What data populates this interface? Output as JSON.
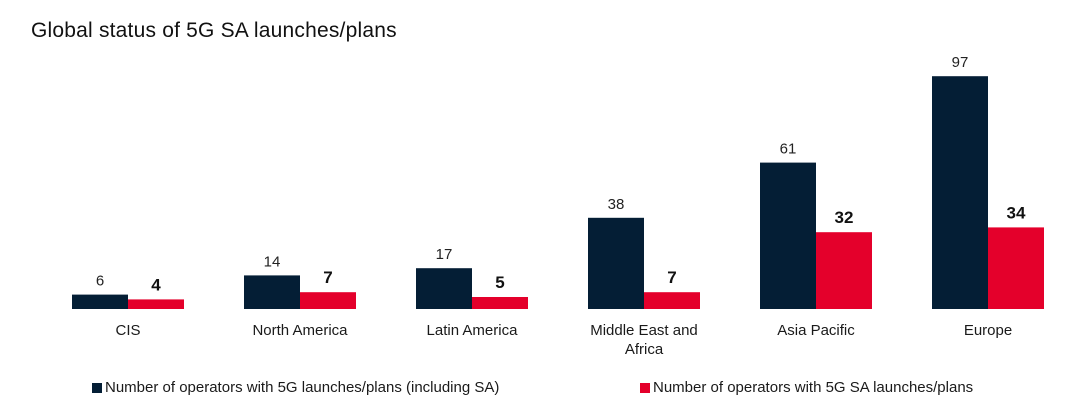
{
  "chart_data": {
    "type": "bar",
    "title": "Global status of 5G SA launches/plans",
    "xlabel": "",
    "ylabel": "",
    "ylim": [
      0,
      100
    ],
    "grid": false,
    "legend_position": "bottom",
    "categories": [
      [
        "CIS"
      ],
      [
        "North America"
      ],
      [
        "Latin America"
      ],
      [
        "Middle East and",
        "Africa"
      ],
      [
        "Asia Pacific"
      ],
      [
        "Europe"
      ]
    ],
    "series": [
      {
        "name": "Number of operators with 5G launches/plans (including SA)",
        "color": "#041e35",
        "values": [
          6,
          14,
          17,
          38,
          61,
          97
        ]
      },
      {
        "name": "Number of operators with 5G SA launches/plans",
        "color": "#e4002b",
        "values": [
          4,
          7,
          5,
          7,
          32,
          34
        ]
      }
    ]
  }
}
